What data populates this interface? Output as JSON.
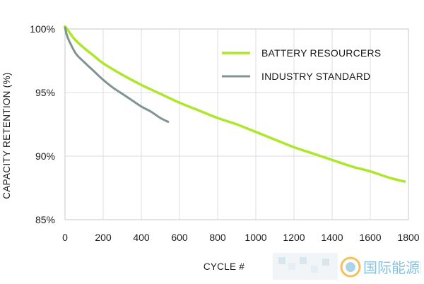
{
  "chart_data": {
    "type": "line",
    "title": "",
    "xlabel": "CYCLE #",
    "ylabel": "CAPACITY RETENTION (%)",
    "xlim": [
      0,
      1800
    ],
    "ylim": [
      85,
      100
    ],
    "x_ticks": [
      0,
      200,
      400,
      600,
      800,
      1000,
      1200,
      1400,
      1600,
      1800
    ],
    "y_ticks": [
      85,
      90,
      95,
      100
    ],
    "y_tick_labels": [
      "85%",
      "90%",
      "95%",
      "100%"
    ],
    "grid": true,
    "legend_position": "top-right",
    "series": [
      {
        "name": "BATTERY RESOURCERS",
        "color": "#aee62b",
        "x": [
          0,
          20,
          50,
          100,
          150,
          200,
          300,
          400,
          500,
          600,
          700,
          800,
          900,
          1000,
          1100,
          1200,
          1300,
          1400,
          1500,
          1600,
          1700,
          1780
        ],
        "y": [
          100.2,
          99.8,
          99.2,
          98.5,
          97.9,
          97.3,
          96.4,
          95.6,
          94.9,
          94.2,
          93.6,
          93.0,
          92.5,
          91.9,
          91.3,
          90.7,
          90.2,
          89.7,
          89.2,
          88.8,
          88.3,
          88.0
        ]
      },
      {
        "name": "INDUSTRY STANDARD",
        "color": "#7f9294",
        "x": [
          0,
          10,
          30,
          60,
          100,
          150,
          200,
          250,
          300,
          350,
          400,
          450,
          500,
          540
        ],
        "y": [
          100.1,
          99.5,
          98.8,
          98.0,
          97.4,
          96.7,
          96.0,
          95.4,
          94.9,
          94.4,
          93.9,
          93.5,
          93.0,
          92.7
        ]
      }
    ]
  },
  "watermark": {
    "text": "国际能源网",
    "color": "#6fb8d8"
  }
}
